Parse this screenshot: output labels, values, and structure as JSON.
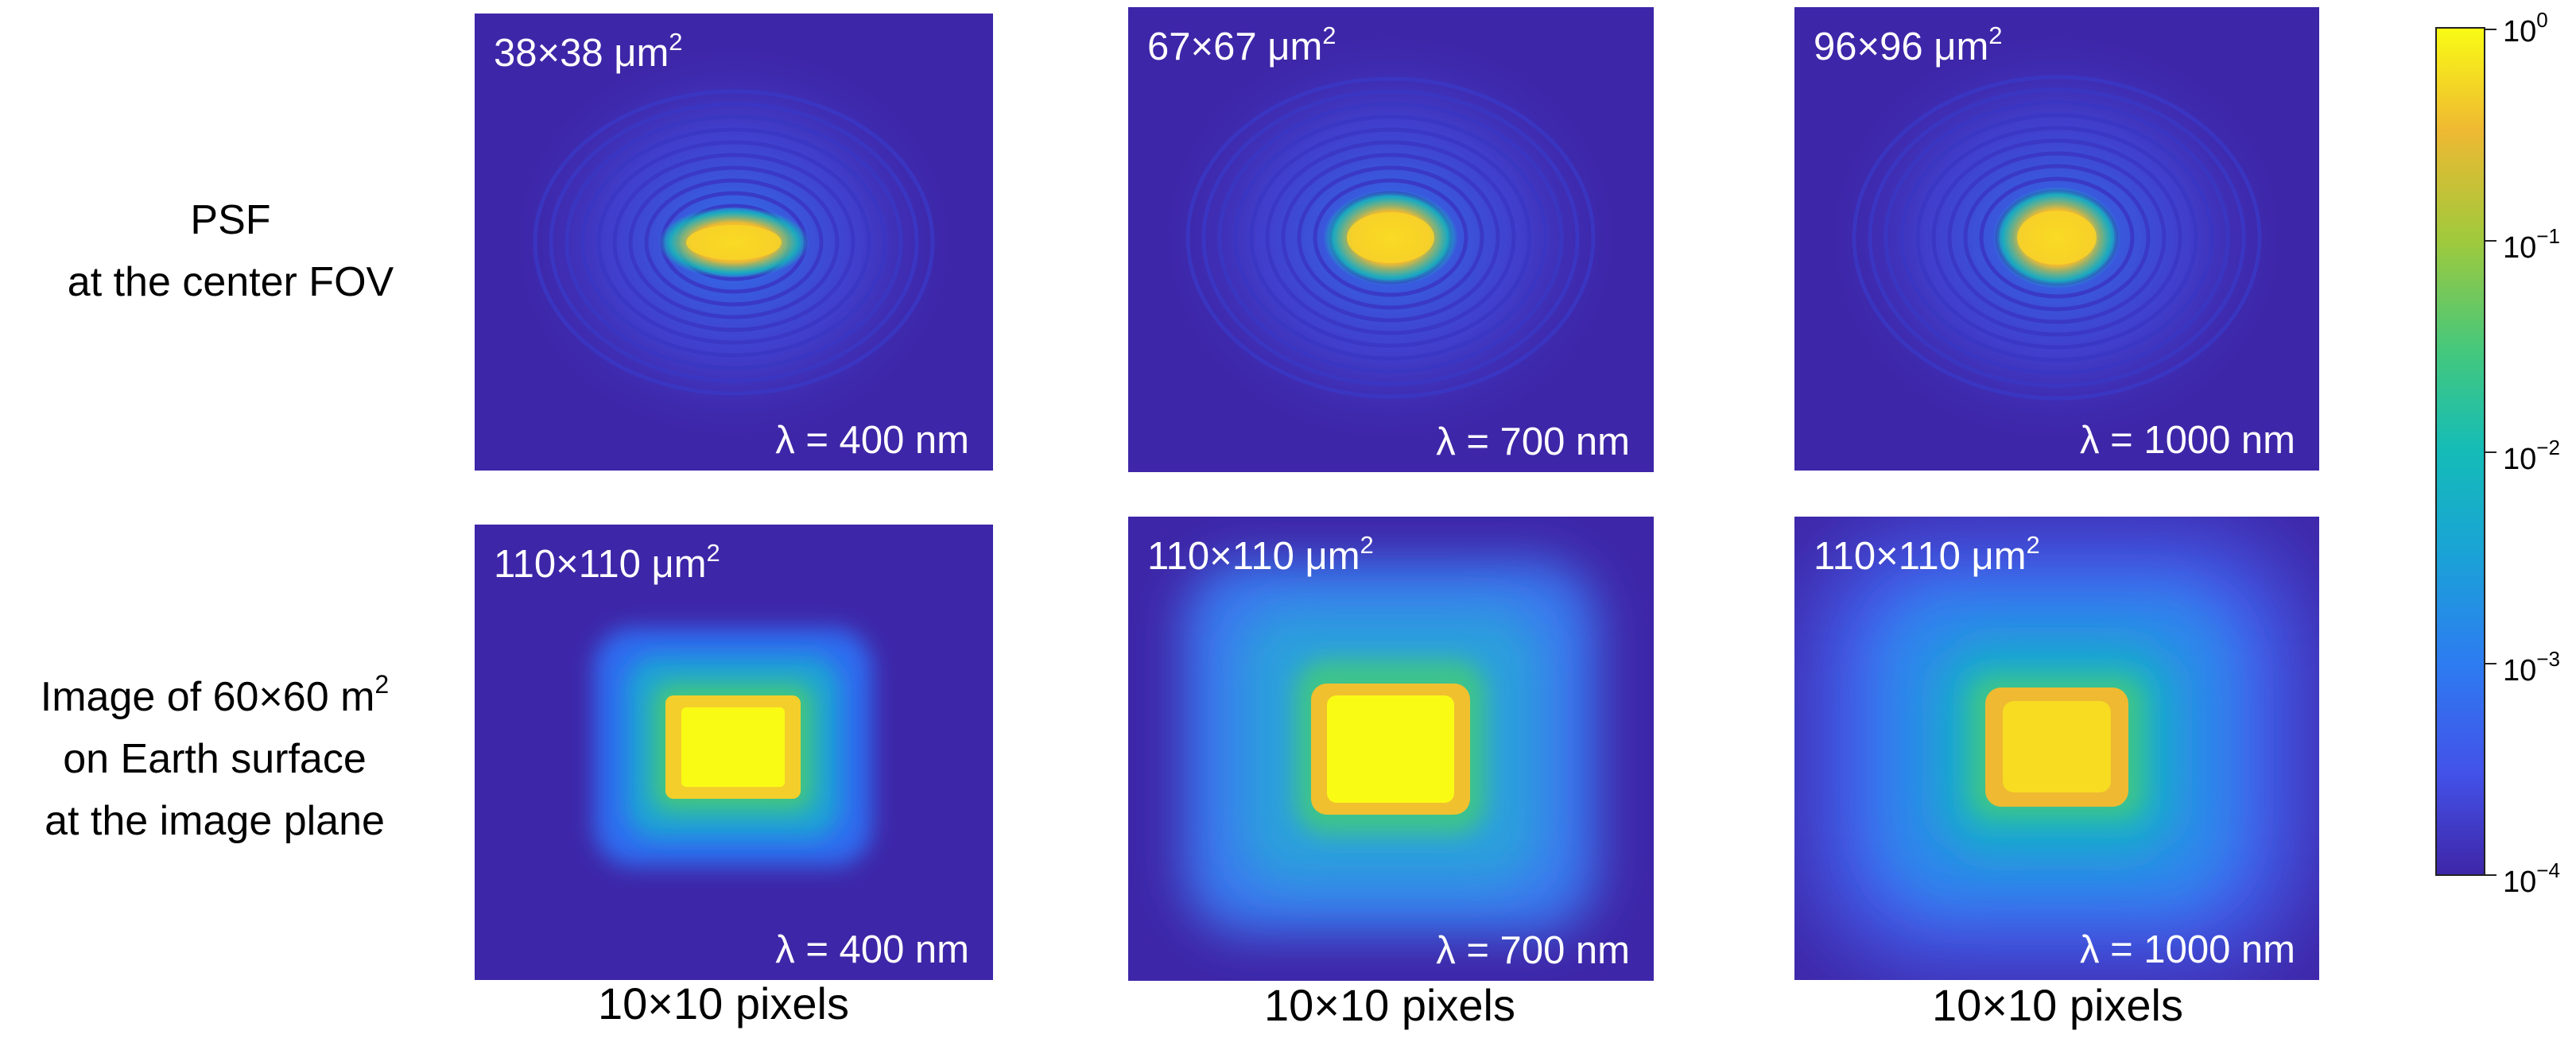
{
  "row_labels": {
    "psf": [
      "PSF",
      "at the center FOV"
    ],
    "image": [
      "Image of 60×60 m",
      "on Earth surface",
      "at the image plane"
    ],
    "image_sup": "2"
  },
  "psf_panels": [
    {
      "size": "38×38 μm",
      "sup": "2",
      "wavelength": "λ = 400 nm"
    },
    {
      "size": "67×67 μm",
      "sup": "2",
      "wavelength": "λ = 700 nm"
    },
    {
      "size": "96×96 μm",
      "sup": "2",
      "wavelength": "λ = 1000 nm"
    }
  ],
  "image_panels": [
    {
      "size": "110×110 μm",
      "sup": "2",
      "wavelength": "λ = 400 nm"
    },
    {
      "size": "110×110 μm",
      "sup": "2",
      "wavelength": "λ = 700 nm"
    },
    {
      "size": "110×110 μm",
      "sup": "2",
      "wavelength": "λ = 1000 nm"
    }
  ],
  "pixel_labels": [
    "10×10 pixels",
    "10×10 pixels",
    "10×10 pixels"
  ],
  "colorbar": {
    "base": "10",
    "exponents": [
      "0",
      "−1",
      "−2",
      "−3",
      "−4"
    ],
    "colors": [
      "#3e26a8",
      "#4352e9",
      "#2d7cf1",
      "#1aa3d6",
      "#14bcb8",
      "#45c87c",
      "#a0c93c",
      "#efb932",
      "#f9fb15"
    ]
  }
}
